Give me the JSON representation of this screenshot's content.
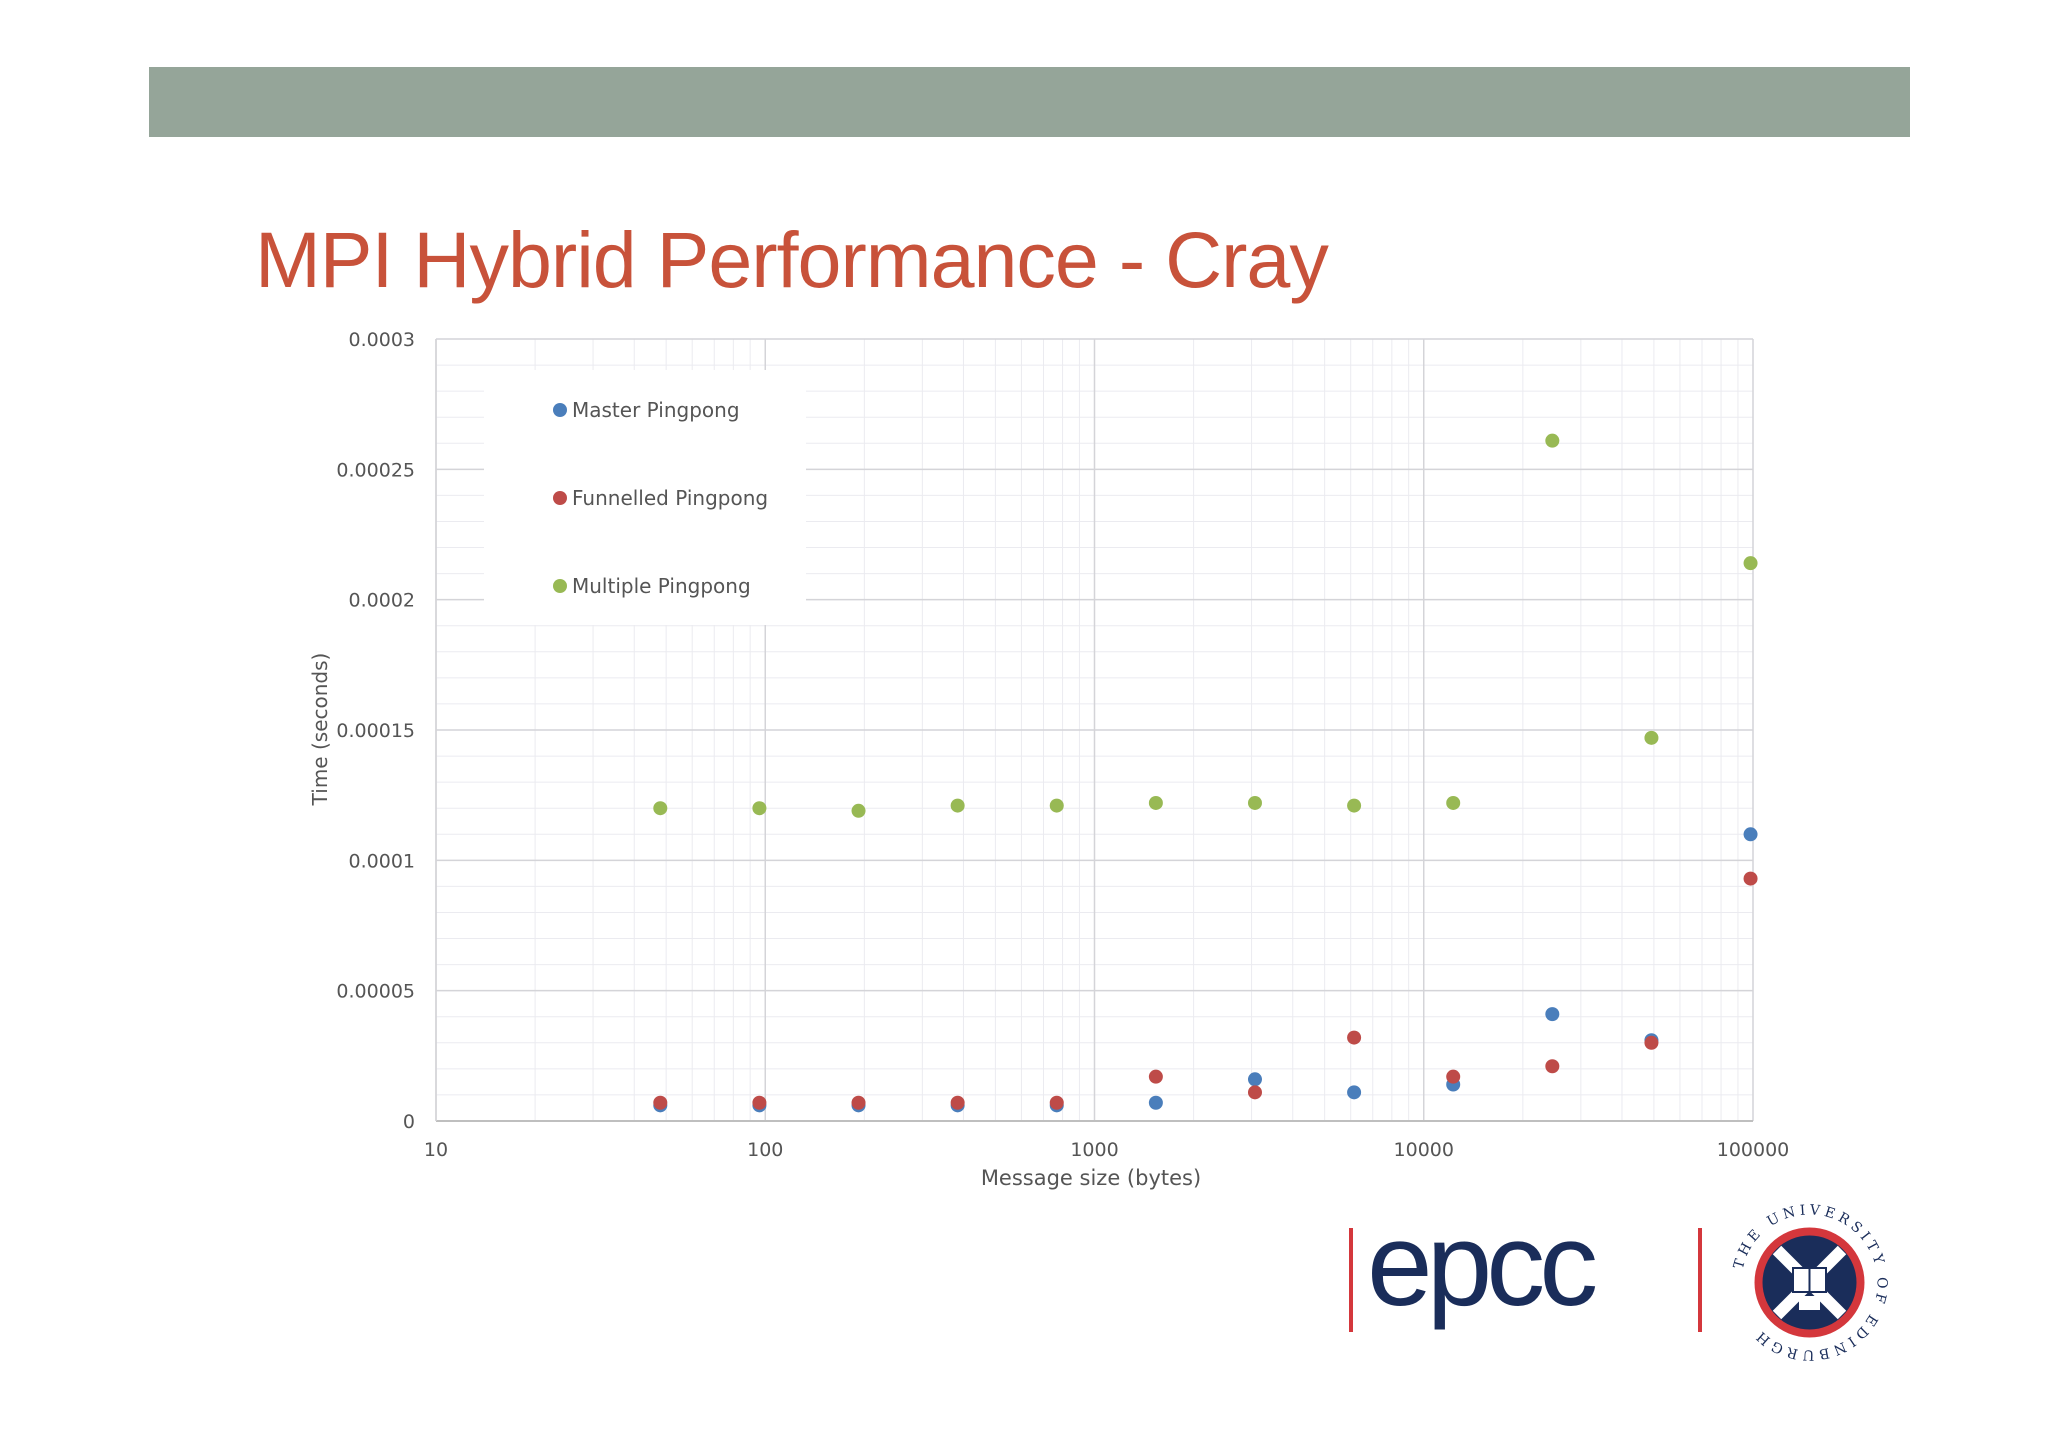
{
  "slide": {
    "title": "MPI Hybrid Performance - Cray"
  },
  "chart_data": {
    "type": "scatter",
    "xscale": "log",
    "xlim": [
      10,
      100000
    ],
    "ylim": [
      0,
      0.0003
    ],
    "xlabel": "Message size (bytes)",
    "ylabel": "Time (seconds)",
    "x_tick_labels": [
      "10",
      "100",
      "1000",
      "10000",
      "100000"
    ],
    "y_tick_labels": [
      "0",
      "0.00005",
      "0.0001",
      "0.00015",
      "0.0002",
      "0.00025",
      "0.0003"
    ],
    "grid": true,
    "legend_position": "top-left",
    "x": [
      48,
      96,
      192,
      384,
      768,
      1536,
      3072,
      6144,
      12288,
      24576,
      49152,
      98304
    ],
    "series": [
      {
        "name": "Master Pingpong",
        "color": "#4a7ebb",
        "values": [
          6e-06,
          6e-06,
          6e-06,
          6e-06,
          6e-06,
          7e-06,
          1.6e-05,
          1.1e-05,
          1.4e-05,
          4.1e-05,
          3.1e-05,
          0.00011
        ]
      },
      {
        "name": "Funnelled Pingpong",
        "color": "#be4b48",
        "values": [
          7e-06,
          7e-06,
          7e-06,
          7e-06,
          7e-06,
          1.7e-05,
          1.1e-05,
          3.2e-05,
          1.7e-05,
          2.1e-05,
          3e-05,
          9.3e-05
        ]
      },
      {
        "name": "Multiple Pingpong",
        "color": "#98b954",
        "values": [
          0.00012,
          0.00012,
          0.000119,
          0.000121,
          0.000121,
          0.000122,
          0.000122,
          0.000121,
          0.000122,
          0.000261,
          0.000147,
          0.000214
        ]
      }
    ]
  },
  "logo": {
    "text": "epcc",
    "color": "#1a2d5a",
    "accent": "#d4373c",
    "seal_text": "THE UNIVERSITY OF EDINBURGH",
    "seal_color": "#1a2d5a"
  }
}
